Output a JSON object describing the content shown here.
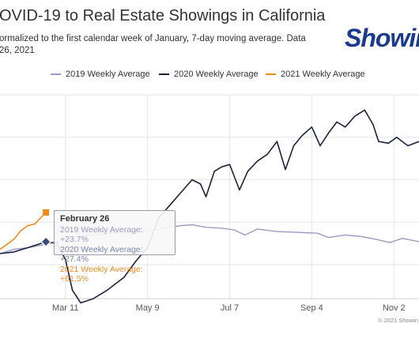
{
  "header": {
    "title": "OVID-19 to Real Estate Showings in California",
    "subtitle_line1": "ormalized to the first calendar week of January, 7-day moving average. Data",
    "subtitle_line2": "26, 2021",
    "logo_text": "Showin"
  },
  "colors": {
    "series_2019": "#9a9ac4",
    "series_2020": "#1c2340",
    "series_2021": "#ee8a1c",
    "grid": "#e6e6e6"
  },
  "tooltip": {
    "date": "February 26",
    "line_2019": "2019 Weekly Average: +23.7%",
    "line_2020": "2020 Weekly Average: +27.4%",
    "line_2021": "2021 Weekly Average: +61.5%"
  },
  "credit": "© 2021 Showin",
  "chart_data": {
    "type": "line",
    "title": "OVID-19 to Real Estate Showings in California",
    "x_type": "date (2020 calendar, partial view)",
    "x_range": [
      "2020-01-24",
      "2020-11-20"
    ],
    "x_tick_labels": [
      "Mar 11",
      "May 9",
      "Jul 7",
      "Sep 4",
      "Nov 2"
    ],
    "y_range_percent": [
      -40,
      200
    ],
    "y_tick_labels": [],
    "grid": true,
    "legend_position": "top",
    "series": [
      {
        "name": "2019 Weekly Average",
        "points": [
          [
            "2020-01-24",
            13
          ],
          [
            "2020-02-03",
            18
          ],
          [
            "2020-02-13",
            20
          ],
          [
            "2020-02-26",
            24
          ],
          [
            "2020-03-05",
            27
          ],
          [
            "2020-03-16",
            31
          ],
          [
            "2020-03-27",
            34
          ],
          [
            "2020-04-09",
            36
          ],
          [
            "2020-04-22",
            39
          ],
          [
            "2020-05-09",
            40
          ],
          [
            "2020-05-20",
            43
          ],
          [
            "2020-06-02",
            46
          ],
          [
            "2020-06-10",
            47
          ],
          [
            "2020-06-20",
            44
          ],
          [
            "2020-07-01",
            43
          ],
          [
            "2020-07-10",
            41
          ],
          [
            "2020-07-18",
            35
          ],
          [
            "2020-07-27",
            42
          ],
          [
            "2020-08-10",
            39
          ],
          [
            "2020-08-25",
            38
          ],
          [
            "2020-09-08",
            37
          ],
          [
            "2020-09-16",
            32
          ],
          [
            "2020-09-28",
            35
          ],
          [
            "2020-10-10",
            33
          ],
          [
            "2020-10-20",
            30
          ],
          [
            "2020-10-30",
            26
          ],
          [
            "2020-11-08",
            31
          ],
          [
            "2020-11-20",
            27
          ]
        ]
      },
      {
        "name": "2020 Weekly Average",
        "points": [
          [
            "2020-01-24",
            13
          ],
          [
            "2020-02-03",
            15
          ],
          [
            "2020-02-13",
            20
          ],
          [
            "2020-02-26",
            27
          ],
          [
            "2020-03-05",
            25
          ],
          [
            "2020-03-11",
            6
          ],
          [
            "2020-03-16",
            -30
          ],
          [
            "2020-03-22",
            -45
          ],
          [
            "2020-03-31",
            -40
          ],
          [
            "2020-04-10",
            -30
          ],
          [
            "2020-04-22",
            -15
          ],
          [
            "2020-05-01",
            5
          ],
          [
            "2020-05-09",
            20
          ],
          [
            "2020-05-17",
            55
          ],
          [
            "2020-05-25",
            70
          ],
          [
            "2020-06-02",
            85
          ],
          [
            "2020-06-10",
            100
          ],
          [
            "2020-06-16",
            95
          ],
          [
            "2020-06-20",
            80
          ],
          [
            "2020-06-26",
            110
          ],
          [
            "2020-07-01",
            115
          ],
          [
            "2020-07-07",
            118
          ],
          [
            "2020-07-14",
            88
          ],
          [
            "2020-07-20",
            110
          ],
          [
            "2020-07-27",
            122
          ],
          [
            "2020-08-03",
            130
          ],
          [
            "2020-08-10",
            145
          ],
          [
            "2020-08-16",
            112
          ],
          [
            "2020-08-22",
            140
          ],
          [
            "2020-08-28",
            152
          ],
          [
            "2020-09-04",
            162
          ],
          [
            "2020-09-10",
            140
          ],
          [
            "2020-09-16",
            155
          ],
          [
            "2020-09-22",
            168
          ],
          [
            "2020-09-28",
            162
          ],
          [
            "2020-10-05",
            175
          ],
          [
            "2020-10-12",
            182
          ],
          [
            "2020-10-18",
            165
          ],
          [
            "2020-10-22",
            145
          ],
          [
            "2020-10-29",
            143
          ],
          [
            "2020-11-04",
            150
          ],
          [
            "2020-11-12",
            140
          ],
          [
            "2020-11-20",
            145
          ]
        ]
      },
      {
        "name": "2021 Weekly Average",
        "points": [
          [
            "2020-01-24",
            18
          ],
          [
            "2020-02-03",
            30
          ],
          [
            "2020-02-08",
            40
          ],
          [
            "2020-02-13",
            46
          ],
          [
            "2020-02-18",
            48
          ],
          [
            "2020-02-22",
            55
          ],
          [
            "2020-02-26",
            61.5
          ]
        ]
      }
    ],
    "tooltip_values": {
      "date": "February 26",
      "2019": "+23.7%",
      "2020": "+27.4%",
      "2021": "+61.5%"
    }
  }
}
